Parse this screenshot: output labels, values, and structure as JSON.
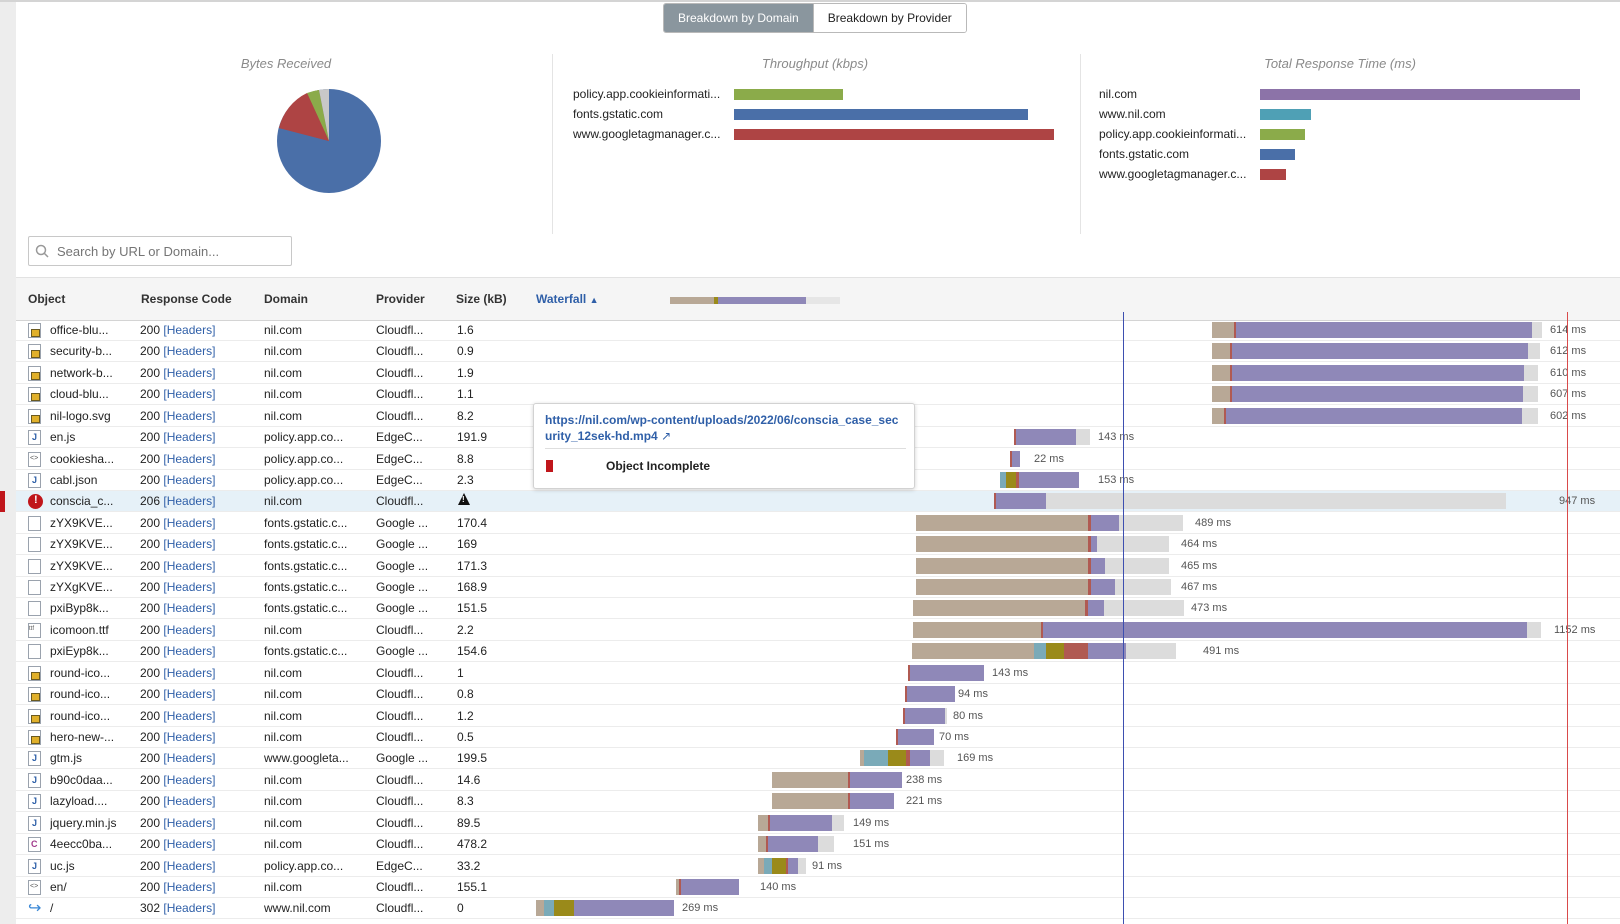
{
  "toggle": {
    "domain": "Breakdown by Domain",
    "provider": "Breakdown by Provider"
  },
  "charts": {
    "bytes": {
      "title": "Bytes Received"
    },
    "throughput": {
      "title": "Throughput (kbps)",
      "items": [
        {
          "label": "policy.app.cookieinformati...",
          "value": 0.34,
          "color": "#8bab4a"
        },
        {
          "label": "fonts.gstatic.com",
          "value": 0.92,
          "color": "#4a6fa8"
        },
        {
          "label": "www.googletagmanager.c...",
          "value": 1.0,
          "color": "#ae4444"
        }
      ]
    },
    "response": {
      "title": "Total Response Time (ms)",
      "items": [
        {
          "label": "nil.com",
          "value": 1.0,
          "color": "#8c73a8"
        },
        {
          "label": "www.nil.com",
          "value": 0.16,
          "color": "#4fa0b5"
        },
        {
          "label": "policy.app.cookieinformati...",
          "value": 0.14,
          "color": "#8bab4a"
        },
        {
          "label": "fonts.gstatic.com",
          "value": 0.11,
          "color": "#4a6fa8"
        },
        {
          "label": "www.googletagmanager.c...",
          "value": 0.08,
          "color": "#ae4444"
        }
      ]
    }
  },
  "search": {
    "placeholder": "Search by URL or Domain..."
  },
  "table": {
    "headers": {
      "object": "Object",
      "code": "Response Code",
      "domain": "Domain",
      "provider": "Provider",
      "size": "Size (kB)",
      "waterfall": "Waterfall"
    },
    "headers_link": "[Headers]",
    "rows": [
      {
        "obj": "office-blu...",
        "code": "200",
        "domain": "nil.com",
        "provider": "Cloudfl...",
        "size": "1.6",
        "ms": "614 ms",
        "icon": "img"
      },
      {
        "obj": "security-b...",
        "code": "200",
        "domain": "nil.com",
        "provider": "Cloudfl...",
        "size": "0.9",
        "ms": "612 ms",
        "icon": "img"
      },
      {
        "obj": "network-b...",
        "code": "200",
        "domain": "nil.com",
        "provider": "Cloudfl...",
        "size": "1.9",
        "ms": "610 ms",
        "icon": "img"
      },
      {
        "obj": "cloud-blu...",
        "code": "200",
        "domain": "nil.com",
        "provider": "Cloudfl...",
        "size": "1.1",
        "ms": "607 ms",
        "icon": "img"
      },
      {
        "obj": "nil-logo.svg",
        "code": "200",
        "domain": "nil.com",
        "provider": "Cloudfl...",
        "size": "8.2",
        "ms": "602 ms",
        "icon": "img"
      },
      {
        "obj": "en.js",
        "code": "200",
        "domain": "policy.app.co...",
        "provider": "EdgeC...",
        "size": "191.9",
        "ms": "143 ms",
        "icon": "js"
      },
      {
        "obj": "cookiesha...",
        "code": "200",
        "domain": "policy.app.co...",
        "provider": "EdgeC...",
        "size": "8.8",
        "ms": "22 ms",
        "icon": "html"
      },
      {
        "obj": "cabl.json",
        "code": "200",
        "domain": "policy.app.co...",
        "provider": "EdgeC...",
        "size": "2.3",
        "ms": "153 ms",
        "icon": "js"
      },
      {
        "obj": "conscia_c...",
        "code": "206",
        "domain": "nil.com",
        "provider": "Cloudfl...",
        "size": "",
        "ms": "947 ms",
        "icon": "err"
      },
      {
        "obj": "zYX9KVE...",
        "code": "200",
        "domain": "fonts.gstatic.c...",
        "provider": "Google ...",
        "size": "170.4",
        "ms": "489 ms",
        "icon": "blank"
      },
      {
        "obj": "zYX9KVE...",
        "code": "200",
        "domain": "fonts.gstatic.c...",
        "provider": "Google ...",
        "size": "169",
        "ms": "464 ms",
        "icon": "blank"
      },
      {
        "obj": "zYX9KVE...",
        "code": "200",
        "domain": "fonts.gstatic.c...",
        "provider": "Google ...",
        "size": "171.3",
        "ms": "465 ms",
        "icon": "blank"
      },
      {
        "obj": "zYXgKVE...",
        "code": "200",
        "domain": "fonts.gstatic.c...",
        "provider": "Google ...",
        "size": "168.9",
        "ms": "467 ms",
        "icon": "blank"
      },
      {
        "obj": "pxiByp8k...",
        "code": "200",
        "domain": "fonts.gstatic.c...",
        "provider": "Google ...",
        "size": "151.5",
        "ms": "473 ms",
        "icon": "blank"
      },
      {
        "obj": "icomoon.ttf",
        "code": "200",
        "domain": "nil.com",
        "provider": "Cloudfl...",
        "size": "2.2",
        "ms": "1152 ms",
        "icon": "font"
      },
      {
        "obj": "pxiEyp8k...",
        "code": "200",
        "domain": "fonts.gstatic.c...",
        "provider": "Google ...",
        "size": "154.6",
        "ms": "491 ms",
        "icon": "blank"
      },
      {
        "obj": "round-ico...",
        "code": "200",
        "domain": "nil.com",
        "provider": "Cloudfl...",
        "size": "1",
        "ms": "143 ms",
        "icon": "img"
      },
      {
        "obj": "round-ico...",
        "code": "200",
        "domain": "nil.com",
        "provider": "Cloudfl...",
        "size": "0.8",
        "ms": "94 ms",
        "icon": "img"
      },
      {
        "obj": "round-ico...",
        "code": "200",
        "domain": "nil.com",
        "provider": "Cloudfl...",
        "size": "1.2",
        "ms": "80 ms",
        "icon": "img"
      },
      {
        "obj": "hero-new-...",
        "code": "200",
        "domain": "nil.com",
        "provider": "Cloudfl...",
        "size": "0.5",
        "ms": "70 ms",
        "icon": "img"
      },
      {
        "obj": "gtm.js",
        "code": "200",
        "domain": "www.googleta...",
        "provider": "Google ...",
        "size": "199.5",
        "ms": "169 ms",
        "icon": "js"
      },
      {
        "obj": "b90c0daa...",
        "code": "200",
        "domain": "nil.com",
        "provider": "Cloudfl...",
        "size": "14.6",
        "ms": "238 ms",
        "icon": "js"
      },
      {
        "obj": "lazyload....",
        "code": "200",
        "domain": "nil.com",
        "provider": "Cloudfl...",
        "size": "8.3",
        "ms": "221 ms",
        "icon": "js"
      },
      {
        "obj": "jquery.min.js",
        "code": "200",
        "domain": "nil.com",
        "provider": "Cloudfl...",
        "size": "89.5",
        "ms": "149 ms",
        "icon": "js"
      },
      {
        "obj": "4eecc0ba...",
        "code": "200",
        "domain": "nil.com",
        "provider": "Cloudfl...",
        "size": "478.2",
        "ms": "151 ms",
        "icon": "css"
      },
      {
        "obj": "uc.js",
        "code": "200",
        "domain": "policy.app.co...",
        "provider": "EdgeC...",
        "size": "33.2",
        "ms": "91 ms",
        "icon": "js"
      },
      {
        "obj": "en/",
        "code": "200",
        "domain": "nil.com",
        "provider": "Cloudfl...",
        "size": "155.1",
        "ms": "140 ms",
        "icon": "html"
      },
      {
        "obj": "/",
        "code": "302",
        "domain": "www.nil.com",
        "provider": "Cloudfl...",
        "size": "0",
        "ms": "269 ms",
        "icon": "redir"
      }
    ]
  },
  "tooltip": {
    "url": "https://nil.com/wp-content/uploads/2022/06/conscia_case_security_12sek-hd.mp4",
    "status": "Object Incomplete"
  },
  "colors": {
    "wait": "#b8a896",
    "connect": "#b05a52",
    "receive": "#8f88b8",
    "remaining": "#dcdcdc",
    "dns": "#7aaab8",
    "ssl": "#9a8a1a",
    "pie_main": "#4a6fa8",
    "pie_red": "#ae4444",
    "pie_green": "#8bab4a",
    "pie_grey": "#c8c8c8"
  }
}
